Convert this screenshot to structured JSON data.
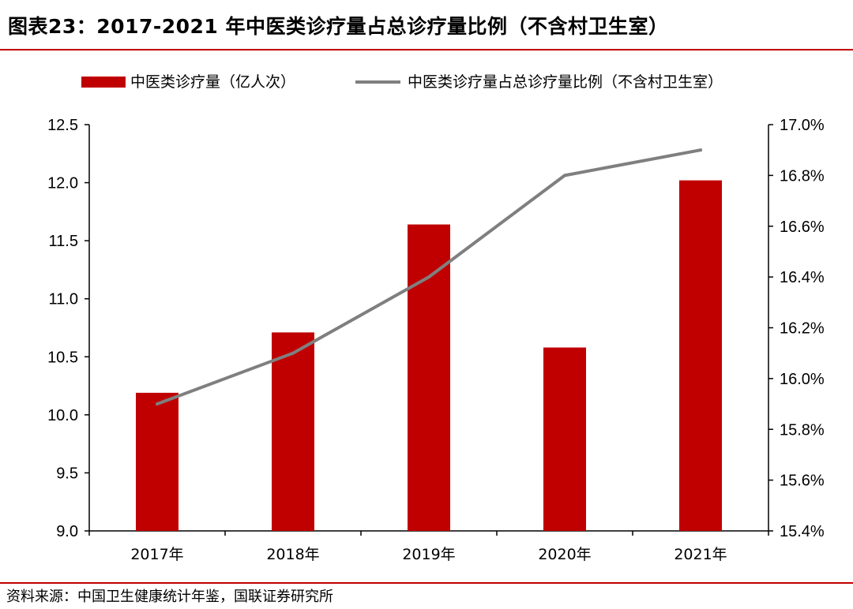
{
  "title": "图表23：2017-2021 年中医类诊疗量占总诊疗量比例（不含村卫生室）",
  "source": "资料来源：中国卫生健康统计年鉴，国联证券研究所",
  "colors": {
    "bar": "#c00000",
    "line": "#7f7f7f",
    "rule": "#c00000"
  },
  "chart_data": {
    "type": "bar+line",
    "categories": [
      "2017年",
      "2018年",
      "2019年",
      "2020年",
      "2021年"
    ],
    "series": [
      {
        "name": "中医类诊疗量（亿人次）",
        "type": "bar",
        "axis": "left",
        "values": [
          10.19,
          10.71,
          11.64,
          10.58,
          12.02
        ]
      },
      {
        "name": "中医类诊疗量占总诊疗量比例（不含村卫生室）",
        "type": "line",
        "axis": "right",
        "values": [
          15.9,
          16.1,
          16.4,
          16.8,
          16.9
        ]
      }
    ],
    "y_left": {
      "min": 9.0,
      "max": 12.5,
      "ticks": [
        "9.0",
        "9.5",
        "10.0",
        "10.5",
        "11.0",
        "11.5",
        "12.0",
        "12.5"
      ]
    },
    "y_right": {
      "min": 15.4,
      "max": 17.0,
      "ticks": [
        "15.4%",
        "15.6%",
        "15.8%",
        "16.0%",
        "16.2%",
        "16.4%",
        "16.6%",
        "16.8%",
        "17.0%"
      ]
    },
    "legend_position": "top",
    "grid": false
  }
}
